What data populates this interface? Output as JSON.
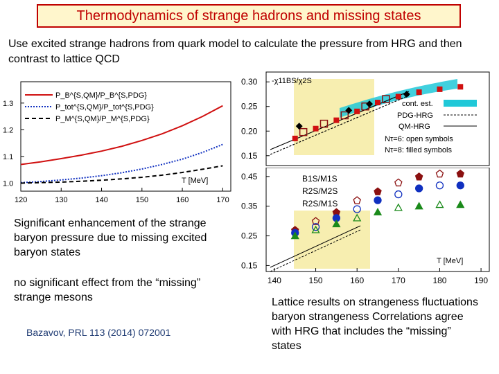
{
  "title": "Thermodynamics of strange hadrons and missing states",
  "intro": "Use excited strange hadrons from quark model to calculate the pressure from HRG and then contrast to lattice QCD",
  "left_chart": {
    "xticks": [
      "120",
      "130",
      "140",
      "150",
      "160",
      "170"
    ],
    "yticks": [
      "1.0",
      "1.1",
      "1.2",
      "1.3"
    ],
    "xlabel": "T [MeV]",
    "legend": [
      "P_B^{S,QM}/P_B^{S,PDG}",
      "P_tot^{S,QM}/P_tot^{S,PDG}",
      "P_M^{S,QM}/P_M^{S,PDG}"
    ]
  },
  "right_top": {
    "yticks": [
      "0.30",
      "0.25",
      "0.20",
      "0.15"
    ],
    "ylabel": "-χ11BS/χ2S",
    "legend": {
      "cont": "cont. est.",
      "pdg": "PDG-HRG",
      "qm": "QM-HRG",
      "open": "Nτ=6: open symbols",
      "filled": "Nτ=8: filled symbols"
    }
  },
  "right_bottom": {
    "yticks": [
      "0.45",
      "0.35",
      "0.25",
      "0.15"
    ],
    "xticks": [
      "140",
      "150",
      "160",
      "170",
      "180",
      "190"
    ],
    "xlabel": "T [MeV]",
    "labels": [
      "B1S/M1S",
      "R2S/M2S",
      "R2S/M1S"
    ]
  },
  "text": {
    "enhancement": "Significant enhancement of the strange baryon pressure due to missing excited baryon states",
    "no_effect": "no significant effect from the “missing” strange mesons",
    "citation": "Bazavov, PRL 113 (2014) 072001",
    "lattice": "Lattice results on strangeness fluctuations baryon strangeness Correlations agree with HRG that includes the “missing” states"
  },
  "colors": {
    "red": "#d01010",
    "blue": "#1030c0",
    "green": "#1a8a1a",
    "dark": "#8b1010",
    "cyan": "#20c8d8",
    "yellow": "#f0e070"
  },
  "chart_data": [
    {
      "type": "line",
      "title": "",
      "xlabel": "T [MeV]",
      "ylabel": "",
      "xlim": [
        120,
        172
      ],
      "ylim": [
        0.97,
        1.38
      ],
      "x": [
        120,
        125,
        130,
        135,
        140,
        145,
        150,
        155,
        160,
        165,
        170
      ],
      "series": [
        {
          "name": "P_B^{S,QM}/P_B^{S,PDG}",
          "values": [
            1.07,
            1.08,
            1.092,
            1.105,
            1.12,
            1.138,
            1.16,
            1.185,
            1.215,
            1.25,
            1.29
          ]
        },
        {
          "name": "P_tot^{S,QM}/P_tot^{S,PDG}",
          "values": [
            1.002,
            1.006,
            1.012,
            1.019,
            1.028,
            1.039,
            1.053,
            1.07,
            1.09,
            1.115,
            1.145
          ]
        },
        {
          "name": "P_M^{S,QM}/P_M^{S,PDG}",
          "values": [
            1.0,
            1.002,
            1.004,
            1.007,
            1.011,
            1.016,
            1.022,
            1.03,
            1.04,
            1.052,
            1.065
          ]
        }
      ]
    },
    {
      "type": "scatter",
      "title": "",
      "ylabel": "-χ11BS/χ2S",
      "xlim": [
        138,
        192
      ],
      "ylim": [
        0.13,
        0.32
      ],
      "series": [
        {
          "name": "filled red",
          "x": [
            145,
            150,
            155,
            160,
            165,
            170,
            175,
            180,
            185
          ],
          "values": [
            0.185,
            0.205,
            0.222,
            0.24,
            0.258,
            0.27,
            0.279,
            0.285,
            0.29
          ]
        },
        {
          "name": "open red",
          "x": [
            147,
            152,
            157,
            162,
            167
          ],
          "values": [
            0.198,
            0.215,
            0.232,
            0.25,
            0.265
          ]
        },
        {
          "name": "black diamonds",
          "x": [
            146,
            158,
            163,
            172
          ],
          "values": [
            0.21,
            0.242,
            0.255,
            0.275
          ]
        }
      ]
    },
    {
      "type": "scatter",
      "title": "",
      "xlabel": "T [MeV]",
      "xlim": [
        138,
        192
      ],
      "ylim": [
        0.13,
        0.48
      ],
      "x": [
        145,
        150,
        155,
        160,
        165,
        170,
        175,
        180,
        185
      ],
      "series": [
        {
          "name": "B1S/M1S",
          "values": [
            0.27,
            0.3,
            0.33,
            0.37,
            0.4,
            0.43,
            0.45,
            0.46,
            0.46
          ]
        },
        {
          "name": "R2S/M2S",
          "values": [
            0.26,
            0.28,
            0.31,
            0.34,
            0.37,
            0.39,
            0.41,
            0.42,
            0.42
          ]
        },
        {
          "name": "R2S/M1S",
          "values": [
            0.25,
            0.27,
            0.29,
            0.31,
            0.33,
            0.345,
            0.35,
            0.355,
            0.355
          ]
        }
      ]
    }
  ]
}
